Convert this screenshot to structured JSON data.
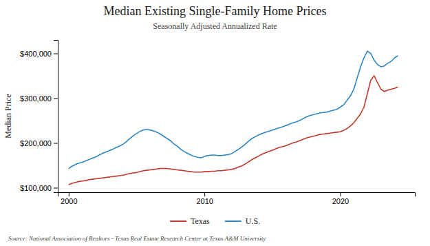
{
  "chart_data": {
    "type": "line",
    "title": "Median Existing Single-Family Home Prices",
    "subtitle": "Seasonally Adjusted Annualized Rate",
    "ylabel": "Median Price",
    "source": "Source: National Association of Realtors - Texas Real Estate Research Center at Texas A&M University",
    "xlim": [
      1999.2,
      2025.5
    ],
    "xticks": [
      2000,
      2010,
      2020
    ],
    "ylim": [
      90000,
      430000
    ],
    "yticks": [
      {
        "value": 100000,
        "label": "$100,000"
      },
      {
        "value": 200000,
        "label": "$200,000"
      },
      {
        "value": 300000,
        "label": "$300,000"
      },
      {
        "value": 400000,
        "label": "$400,000"
      }
    ],
    "grid": false,
    "legend": "bottom",
    "x": [
      2000.0,
      2000.25,
      2000.5,
      2000.75,
      2001.0,
      2001.25,
      2001.5,
      2001.75,
      2002.0,
      2002.25,
      2002.5,
      2002.75,
      2003.0,
      2003.25,
      2003.5,
      2003.75,
      2004.0,
      2004.25,
      2004.5,
      2004.75,
      2005.0,
      2005.25,
      2005.5,
      2005.75,
      2006.0,
      2006.25,
      2006.5,
      2006.75,
      2007.0,
      2007.25,
      2007.5,
      2007.75,
      2008.0,
      2008.25,
      2008.5,
      2008.75,
      2009.0,
      2009.25,
      2009.5,
      2009.75,
      2010.0,
      2010.25,
      2010.5,
      2010.75,
      2011.0,
      2011.25,
      2011.5,
      2011.75,
      2012.0,
      2012.25,
      2012.5,
      2012.75,
      2013.0,
      2013.25,
      2013.5,
      2013.75,
      2014.0,
      2014.25,
      2014.5,
      2014.75,
      2015.0,
      2015.25,
      2015.5,
      2015.75,
      2016.0,
      2016.25,
      2016.5,
      2016.75,
      2017.0,
      2017.25,
      2017.5,
      2017.75,
      2018.0,
      2018.25,
      2018.5,
      2018.75,
      2019.0,
      2019.25,
      2019.5,
      2019.75,
      2020.0,
      2020.25,
      2020.5,
      2020.75,
      2021.0,
      2021.25,
      2021.5,
      2021.75,
      2022.0,
      2022.25,
      2022.5,
      2022.75,
      2023.0,
      2023.25,
      2023.5,
      2023.75,
      2024.0,
      2024.25
    ],
    "series": [
      {
        "name": "Texas",
        "color": "#c0392b",
        "values": [
          107000,
          110000,
          112000,
          114000,
          115000,
          116000,
          118000,
          119000,
          120000,
          121000,
          122000,
          123000,
          124000,
          125000,
          126000,
          127000,
          128000,
          130000,
          132000,
          133000,
          134000,
          136000,
          138000,
          139000,
          140000,
          141000,
          142000,
          143000,
          143000,
          143000,
          142000,
          141000,
          140000,
          139000,
          138000,
          137000,
          136000,
          135000,
          135000,
          135000,
          136000,
          136000,
          137000,
          137000,
          138000,
          138000,
          139000,
          140000,
          141000,
          143000,
          146000,
          149000,
          153000,
          158000,
          163000,
          167000,
          171000,
          175000,
          178000,
          181000,
          184000,
          187000,
          190000,
          192000,
          194000,
          197000,
          200000,
          202000,
          205000,
          208000,
          211000,
          213000,
          215000,
          217000,
          219000,
          220000,
          221000,
          222000,
          223000,
          224000,
          225000,
          228000,
          232000,
          238000,
          245000,
          255000,
          265000,
          280000,
          310000,
          340000,
          350000,
          335000,
          320000,
          315000,
          318000,
          320000,
          322000,
          325000
        ]
      },
      {
        "name": "U.S.",
        "color": "#2e86c1",
        "values": [
          143000,
          148000,
          152000,
          155000,
          157000,
          160000,
          163000,
          166000,
          169000,
          173000,
          177000,
          180000,
          183000,
          186000,
          190000,
          193000,
          197000,
          203000,
          210000,
          216000,
          221000,
          226000,
          229000,
          230000,
          229000,
          227000,
          224000,
          220000,
          215000,
          210000,
          205000,
          198000,
          193000,
          186000,
          181000,
          177000,
          173000,
          170000,
          168000,
          167000,
          170000,
          172000,
          173000,
          173000,
          172000,
          172000,
          173000,
          174000,
          176000,
          181000,
          186000,
          191000,
          197000,
          204000,
          210000,
          214000,
          218000,
          221000,
          224000,
          226000,
          229000,
          231000,
          234000,
          236000,
          239000,
          242000,
          245000,
          247000,
          250000,
          254000,
          258000,
          261000,
          263000,
          265000,
          267000,
          268000,
          269000,
          271000,
          273000,
          275000,
          280000,
          285000,
          295000,
          305000,
          320000,
          345000,
          370000,
          390000,
          405000,
          400000,
          385000,
          375000,
          370000,
          372000,
          378000,
          382000,
          390000,
          395000
        ]
      }
    ]
  }
}
